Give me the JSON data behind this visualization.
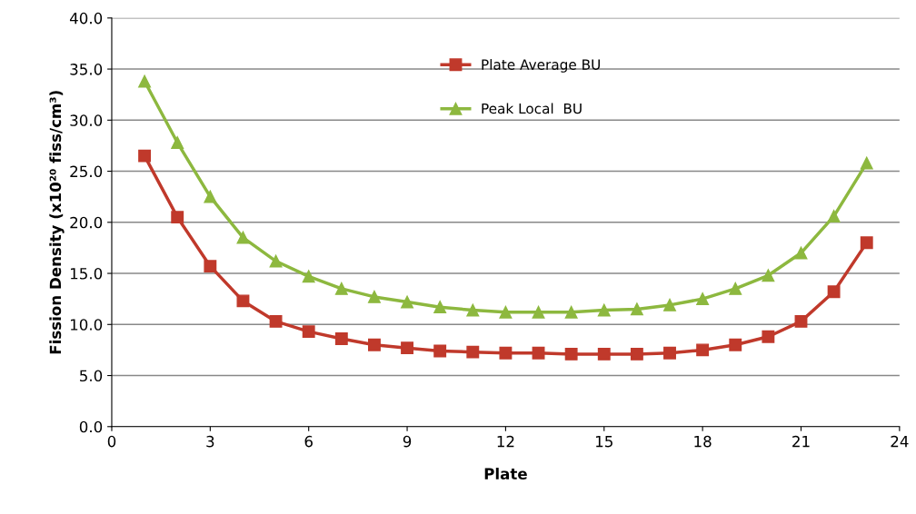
{
  "chart_data": {
    "type": "line",
    "xlabel": "Plate",
    "ylabel": "Fission Density (x10²⁰ fiss/cm³)",
    "x": [
      1,
      2,
      3,
      4,
      5,
      6,
      7,
      8,
      9,
      10,
      11,
      12,
      13,
      14,
      15,
      16,
      17,
      18,
      19,
      20,
      21,
      22,
      23
    ],
    "series": [
      {
        "name": "Plate Average BU",
        "color": "#c0392b",
        "marker": "square",
        "values": [
          26.5,
          20.5,
          15.7,
          12.3,
          10.3,
          9.3,
          8.6,
          8.0,
          7.7,
          7.4,
          7.3,
          7.2,
          7.2,
          7.1,
          7.1,
          7.1,
          7.2,
          7.5,
          8.0,
          8.8,
          10.3,
          13.2,
          18.0
        ]
      },
      {
        "name": "Peak Local  BU",
        "color": "#8db83f",
        "marker": "triangle",
        "values": [
          33.8,
          27.8,
          22.5,
          18.5,
          16.2,
          14.7,
          13.5,
          12.7,
          12.2,
          11.7,
          11.4,
          11.2,
          11.2,
          11.2,
          11.4,
          11.5,
          11.9,
          12.5,
          13.5,
          14.8,
          17.0,
          20.6,
          25.8
        ]
      }
    ],
    "xlim": [
      0,
      24
    ],
    "xticks": [
      0,
      3,
      6,
      9,
      12,
      15,
      18,
      21,
      24
    ],
    "ylim": [
      0,
      40
    ],
    "yticks": [
      {
        "value": 0,
        "label": "0.0"
      },
      {
        "value": 5,
        "label": "5.0"
      },
      {
        "value": 10,
        "label": "10.0"
      },
      {
        "value": 15,
        "label": "15.0"
      },
      {
        "value": 20,
        "label": "20.0"
      },
      {
        "value": 25,
        "label": "25.0"
      },
      {
        "value": 30,
        "label": "30.0"
      },
      {
        "value": 35,
        "label": "35.0"
      },
      {
        "value": 40,
        "label": "40.0"
      }
    ],
    "grid": "y",
    "legend": "top",
    "line_style": "solid"
  }
}
